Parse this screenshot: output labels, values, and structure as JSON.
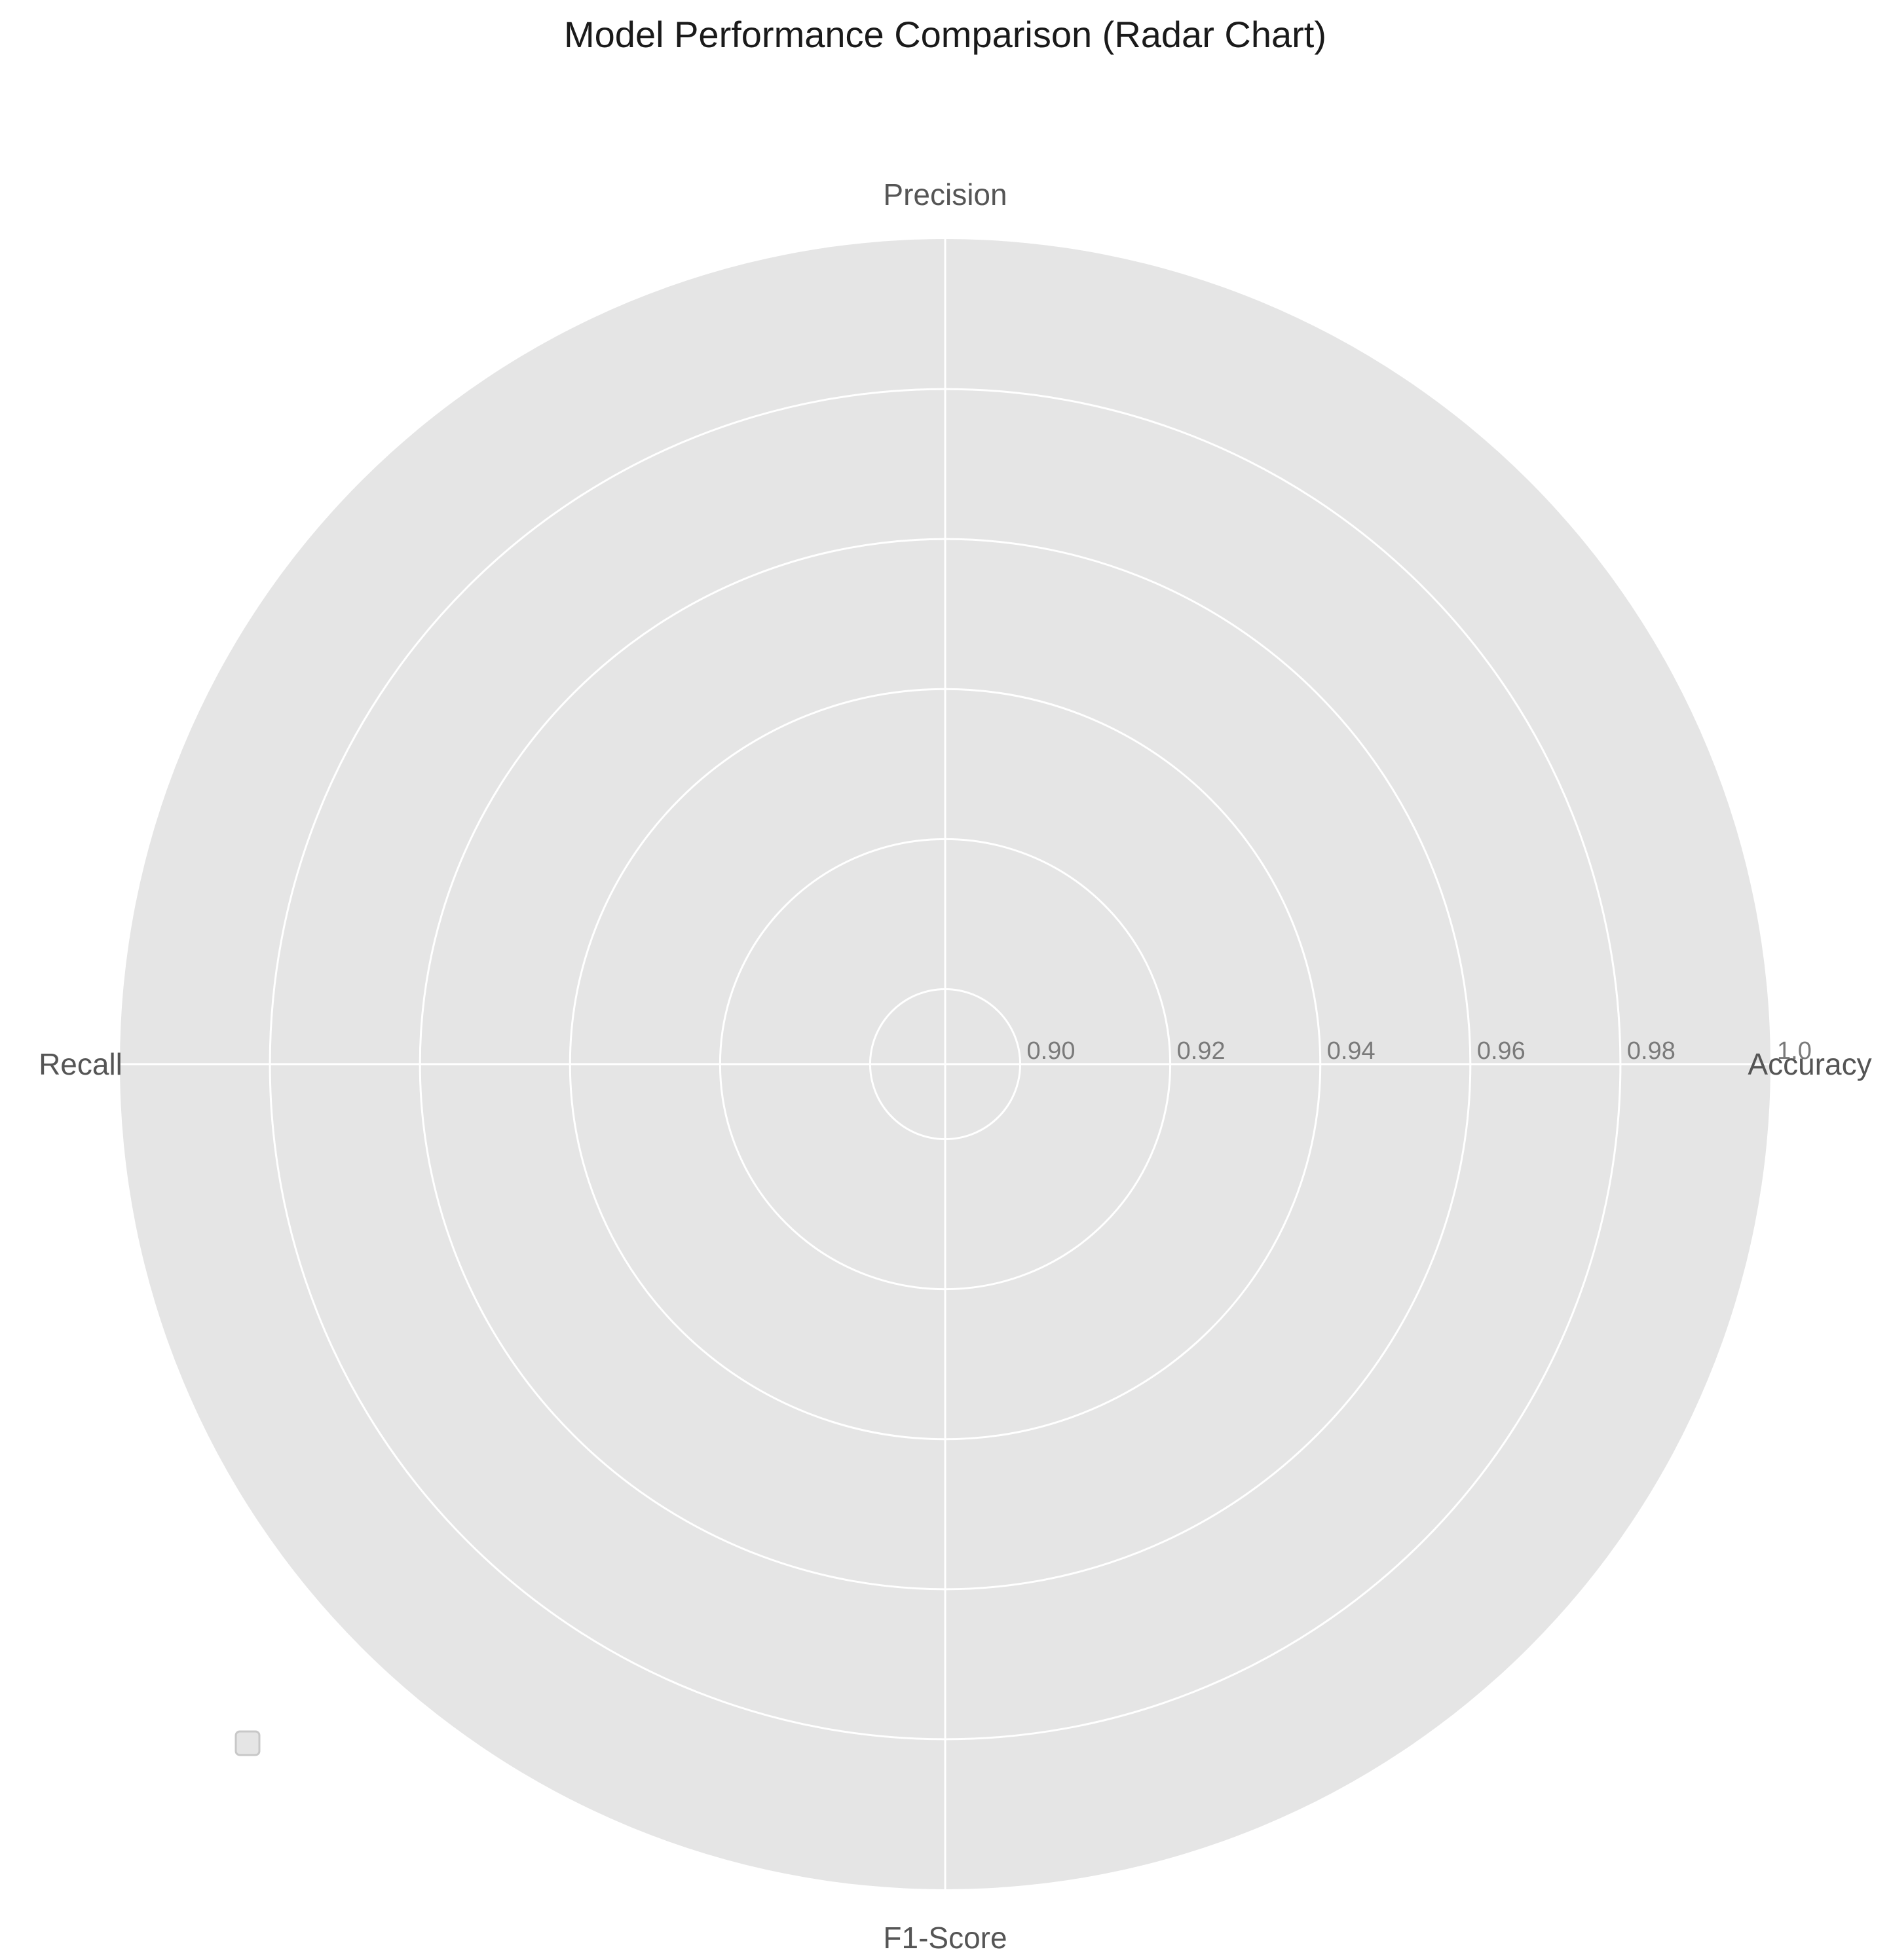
{
  "chart_data": {
    "type": "radar",
    "title": "Model Performance Comparison (Radar Chart)",
    "categories": [
      "Accuracy",
      "Precision",
      "Recall",
      "F1-Score"
    ],
    "radial_ticks": [
      "0.90",
      "0.92",
      "0.94",
      "0.96",
      "0.98",
      "1.0"
    ],
    "rlim": [
      0.89,
      1.0
    ],
    "series": [],
    "grid": true,
    "legend": {
      "placement": "lower-left",
      "entries": []
    },
    "colors": {
      "plot_background": "#e5e5e5",
      "grid": "#ffffff"
    }
  }
}
